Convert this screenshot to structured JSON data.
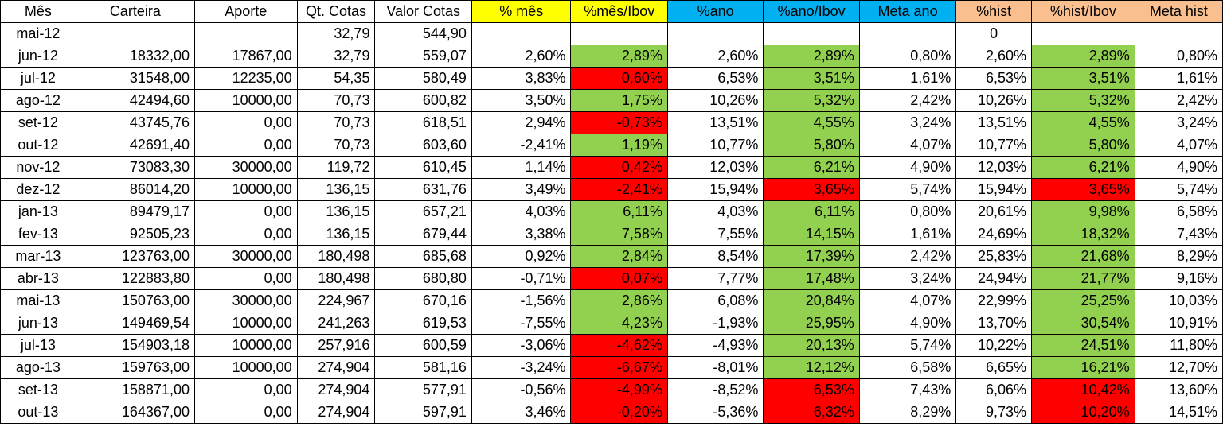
{
  "colors": {
    "yellow": "#ffff00",
    "cyan": "#00b0f0",
    "orange": "#fabf8f",
    "green": "#92d050",
    "red": "#ff0000",
    "white": "#ffffff"
  },
  "columns": [
    {
      "key": "mes",
      "label": "Mês",
      "bg": "white",
      "width": 92
    },
    {
      "key": "carteira",
      "label": "Carteira",
      "bg": "white",
      "width": 145
    },
    {
      "key": "aporte",
      "label": "Aporte",
      "bg": "white",
      "width": 125
    },
    {
      "key": "qt_cotas",
      "label": "Qt. Cotas",
      "bg": "white",
      "width": 95
    },
    {
      "key": "valor_cotas",
      "label": "Valor Cotas",
      "bg": "white",
      "width": 118
    },
    {
      "key": "pct_mes",
      "label": "% mês",
      "bg": "yellow",
      "width": 121
    },
    {
      "key": "pct_mes_ibov",
      "label": "%mês/Ibov",
      "bg": "yellow",
      "width": 118
    },
    {
      "key": "pct_ano",
      "label": "%ano",
      "bg": "cyan",
      "width": 117
    },
    {
      "key": "pct_ano_ibov",
      "label": "%ano/Ibov",
      "bg": "cyan",
      "width": 117
    },
    {
      "key": "meta_ano",
      "label": "Meta ano",
      "bg": "cyan",
      "width": 118
    },
    {
      "key": "pct_hist",
      "label": "%hist",
      "bg": "orange",
      "width": 92
    },
    {
      "key": "pct_hist_ibov",
      "label": "%hist/Ibov",
      "bg": "orange",
      "width": 126
    },
    {
      "key": "meta_hist",
      "label": "Meta hist",
      "bg": "orange",
      "width": 107
    }
  ],
  "rows": [
    {
      "mes": "mai-12",
      "carteira": "",
      "aporte": "",
      "qt_cotas": "32,79",
      "valor_cotas": "544,90",
      "pct_mes": "",
      "pct_mes_ibov": "",
      "pct_ano": "",
      "pct_ano_ibov": "",
      "meta_ano": "",
      "pct_hist": "0",
      "pct_hist_ibov": "",
      "meta_hist": "",
      "c1": "white",
      "c2": "white",
      "c3": "white"
    },
    {
      "mes": "jun-12",
      "carteira": "18332,00",
      "aporte": "17867,00",
      "qt_cotas": "32,79",
      "valor_cotas": "559,07",
      "pct_mes": "2,60%",
      "pct_mes_ibov": "2,89%",
      "pct_ano": "2,60%",
      "pct_ano_ibov": "2,89%",
      "meta_ano": "0,80%",
      "pct_hist": "2,60%",
      "pct_hist_ibov": "2,89%",
      "meta_hist": "0,80%",
      "c1": "green",
      "c2": "green",
      "c3": "green"
    },
    {
      "mes": "jul-12",
      "carteira": "31548,00",
      "aporte": "12235,00",
      "qt_cotas": "54,35",
      "valor_cotas": "580,49",
      "pct_mes": "3,83%",
      "pct_mes_ibov": "0,60%",
      "pct_ano": "6,53%",
      "pct_ano_ibov": "3,51%",
      "meta_ano": "1,61%",
      "pct_hist": "6,53%",
      "pct_hist_ibov": "3,51%",
      "meta_hist": "1,61%",
      "c1": "red",
      "c2": "green",
      "c3": "green"
    },
    {
      "mes": "ago-12",
      "carteira": "42494,60",
      "aporte": "10000,00",
      "qt_cotas": "70,73",
      "valor_cotas": "600,82",
      "pct_mes": "3,50%",
      "pct_mes_ibov": "1,75%",
      "pct_ano": "10,26%",
      "pct_ano_ibov": "5,32%",
      "meta_ano": "2,42%",
      "pct_hist": "10,26%",
      "pct_hist_ibov": "5,32%",
      "meta_hist": "2,42%",
      "c1": "green",
      "c2": "green",
      "c3": "green"
    },
    {
      "mes": "set-12",
      "carteira": "43745,76",
      "aporte": "0,00",
      "qt_cotas": "70,73",
      "valor_cotas": "618,51",
      "pct_mes": "2,94%",
      "pct_mes_ibov": "-0,73%",
      "pct_ano": "13,51%",
      "pct_ano_ibov": "4,55%",
      "meta_ano": "3,24%",
      "pct_hist": "13,51%",
      "pct_hist_ibov": "4,55%",
      "meta_hist": "3,24%",
      "c1": "red",
      "c2": "green",
      "c3": "green"
    },
    {
      "mes": "out-12",
      "carteira": "42691,40",
      "aporte": "0,00",
      "qt_cotas": "70,73",
      "valor_cotas": "603,60",
      "pct_mes": "-2,41%",
      "pct_mes_ibov": "1,19%",
      "pct_ano": "10,77%",
      "pct_ano_ibov": "5,80%",
      "meta_ano": "4,07%",
      "pct_hist": "10,77%",
      "pct_hist_ibov": "5,80%",
      "meta_hist": "4,07%",
      "c1": "green",
      "c2": "green",
      "c3": "green"
    },
    {
      "mes": "nov-12",
      "carteira": "73083,30",
      "aporte": "30000,00",
      "qt_cotas": "119,72",
      "valor_cotas": "610,45",
      "pct_mes": "1,14%",
      "pct_mes_ibov": "0,42%",
      "pct_ano": "12,03%",
      "pct_ano_ibov": "6,21%",
      "meta_ano": "4,90%",
      "pct_hist": "12,03%",
      "pct_hist_ibov": "6,21%",
      "meta_hist": "4,90%",
      "c1": "red",
      "c2": "green",
      "c3": "green"
    },
    {
      "mes": "dez-12",
      "carteira": "86014,20",
      "aporte": "10000,00",
      "qt_cotas": "136,15",
      "valor_cotas": "631,76",
      "pct_mes": "3,49%",
      "pct_mes_ibov": "-2,41%",
      "pct_ano": "15,94%",
      "pct_ano_ibov": "3,65%",
      "meta_ano": "5,74%",
      "pct_hist": "15,94%",
      "pct_hist_ibov": "3,65%",
      "meta_hist": "5,74%",
      "c1": "red",
      "c2": "red",
      "c3": "red"
    },
    {
      "mes": "jan-13",
      "carteira": "89479,17",
      "aporte": "0,00",
      "qt_cotas": "136,15",
      "valor_cotas": "657,21",
      "pct_mes": "4,03%",
      "pct_mes_ibov": "6,11%",
      "pct_ano": "4,03%",
      "pct_ano_ibov": "6,11%",
      "meta_ano": "0,80%",
      "pct_hist": "20,61%",
      "pct_hist_ibov": "9,98%",
      "meta_hist": "6,58%",
      "c1": "green",
      "c2": "green",
      "c3": "green"
    },
    {
      "mes": "fev-13",
      "carteira": "92505,23",
      "aporte": "0,00",
      "qt_cotas": "136,15",
      "valor_cotas": "679,44",
      "pct_mes": "3,38%",
      "pct_mes_ibov": "7,58%",
      "pct_ano": "7,55%",
      "pct_ano_ibov": "14,15%",
      "meta_ano": "1,61%",
      "pct_hist": "24,69%",
      "pct_hist_ibov": "18,32%",
      "meta_hist": "7,43%",
      "c1": "green",
      "c2": "green",
      "c3": "green"
    },
    {
      "mes": "mar-13",
      "carteira": "123763,00",
      "aporte": "30000,00",
      "qt_cotas": "180,498",
      "valor_cotas": "685,68",
      "pct_mes": "0,92%",
      "pct_mes_ibov": "2,84%",
      "pct_ano": "8,54%",
      "pct_ano_ibov": "17,39%",
      "meta_ano": "2,42%",
      "pct_hist": "25,83%",
      "pct_hist_ibov": "21,68%",
      "meta_hist": "8,29%",
      "c1": "green",
      "c2": "green",
      "c3": "green"
    },
    {
      "mes": "abr-13",
      "carteira": "122883,80",
      "aporte": "0,00",
      "qt_cotas": "180,498",
      "valor_cotas": "680,80",
      "pct_mes": "-0,71%",
      "pct_mes_ibov": "0,07%",
      "pct_ano": "7,77%",
      "pct_ano_ibov": "17,48%",
      "meta_ano": "3,24%",
      "pct_hist": "24,94%",
      "pct_hist_ibov": "21,77%",
      "meta_hist": "9,16%",
      "c1": "red",
      "c2": "green",
      "c3": "green"
    },
    {
      "mes": "mai-13",
      "carteira": "150763,00",
      "aporte": "30000,00",
      "qt_cotas": "224,967",
      "valor_cotas": "670,16",
      "pct_mes": "-1,56%",
      "pct_mes_ibov": "2,86%",
      "pct_ano": "6,08%",
      "pct_ano_ibov": "20,84%",
      "meta_ano": "4,07%",
      "pct_hist": "22,99%",
      "pct_hist_ibov": "25,25%",
      "meta_hist": "10,03%",
      "c1": "green",
      "c2": "green",
      "c3": "green"
    },
    {
      "mes": "jun-13",
      "carteira": "149469,54",
      "aporte": "10000,00",
      "qt_cotas": "241,263",
      "valor_cotas": "619,53",
      "pct_mes": "-7,55%",
      "pct_mes_ibov": "4,23%",
      "pct_ano": "-1,93%",
      "pct_ano_ibov": "25,95%",
      "meta_ano": "4,90%",
      "pct_hist": "13,70%",
      "pct_hist_ibov": "30,54%",
      "meta_hist": "10,91%",
      "c1": "green",
      "c2": "green",
      "c3": "green"
    },
    {
      "mes": "jul-13",
      "carteira": "154903,18",
      "aporte": "10000,00",
      "qt_cotas": "257,916",
      "valor_cotas": "600,59",
      "pct_mes": "-3,06%",
      "pct_mes_ibov": "-4,62%",
      "pct_ano": "-4,93%",
      "pct_ano_ibov": "20,13%",
      "meta_ano": "5,74%",
      "pct_hist": "10,22%",
      "pct_hist_ibov": "24,51%",
      "meta_hist": "11,80%",
      "c1": "red",
      "c2": "green",
      "c3": "green"
    },
    {
      "mes": "ago-13",
      "carteira": "159763,00",
      "aporte": "10000,00",
      "qt_cotas": "274,904",
      "valor_cotas": "581,16",
      "pct_mes": "-3,24%",
      "pct_mes_ibov": "-6,67%",
      "pct_ano": "-8,01%",
      "pct_ano_ibov": "12,12%",
      "meta_ano": "6,58%",
      "pct_hist": "6,65%",
      "pct_hist_ibov": "16,21%",
      "meta_hist": "12,70%",
      "c1": "red",
      "c2": "green",
      "c3": "green"
    },
    {
      "mes": "set-13",
      "carteira": "158871,00",
      "aporte": "0,00",
      "qt_cotas": "274,904",
      "valor_cotas": "577,91",
      "pct_mes": "-0,56%",
      "pct_mes_ibov": "-4,99%",
      "pct_ano": "-8,52%",
      "pct_ano_ibov": "6,53%",
      "meta_ano": "7,43%",
      "pct_hist": "6,06%",
      "pct_hist_ibov": "10,42%",
      "meta_hist": "13,60%",
      "c1": "red",
      "c2": "red",
      "c3": "red"
    },
    {
      "mes": "out-13",
      "carteira": "164367,00",
      "aporte": "0,00",
      "qt_cotas": "274,904",
      "valor_cotas": "597,91",
      "pct_mes": "3,46%",
      "pct_mes_ibov": "-0,20%",
      "pct_ano": "-5,36%",
      "pct_ano_ibov": "6,32%",
      "meta_ano": "8,29%",
      "pct_hist": "9,73%",
      "pct_hist_ibov": "10,20%",
      "meta_hist": "14,51%",
      "c1": "red",
      "c2": "red",
      "c3": "red"
    }
  ]
}
